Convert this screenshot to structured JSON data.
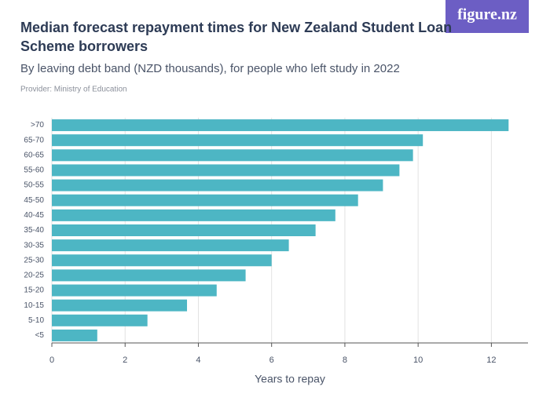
{
  "chart_data": {
    "type": "bar",
    "orientation": "horizontal",
    "title": "Median forecast repayment times for New Zealand Student Loan Scheme borrowers",
    "subtitle": "By leaving debt band (NZD thousands), for people who left study in 2022",
    "provider": "Provider: Ministry of Education",
    "logo": "figure.nz",
    "x_label": "Years to repay",
    "categories": [
      ">70",
      "65-70",
      "60-65",
      "55-60",
      "50-55",
      "45-50",
      "40-45",
      "35-40",
      "30-35",
      "25-30",
      "20-25",
      "15-20",
      "10-15",
      "5-10",
      "<5"
    ],
    "values": [
      12.47,
      10.13,
      9.86,
      9.49,
      9.04,
      8.36,
      7.74,
      7.2,
      6.47,
      6.0,
      5.29,
      4.5,
      3.69,
      2.61,
      1.24
    ],
    "color": "#4db6c4",
    "xlim": [
      0,
      13
    ],
    "xticks": [
      0,
      2,
      4,
      6,
      8,
      10,
      12
    ],
    "grid": true
  }
}
